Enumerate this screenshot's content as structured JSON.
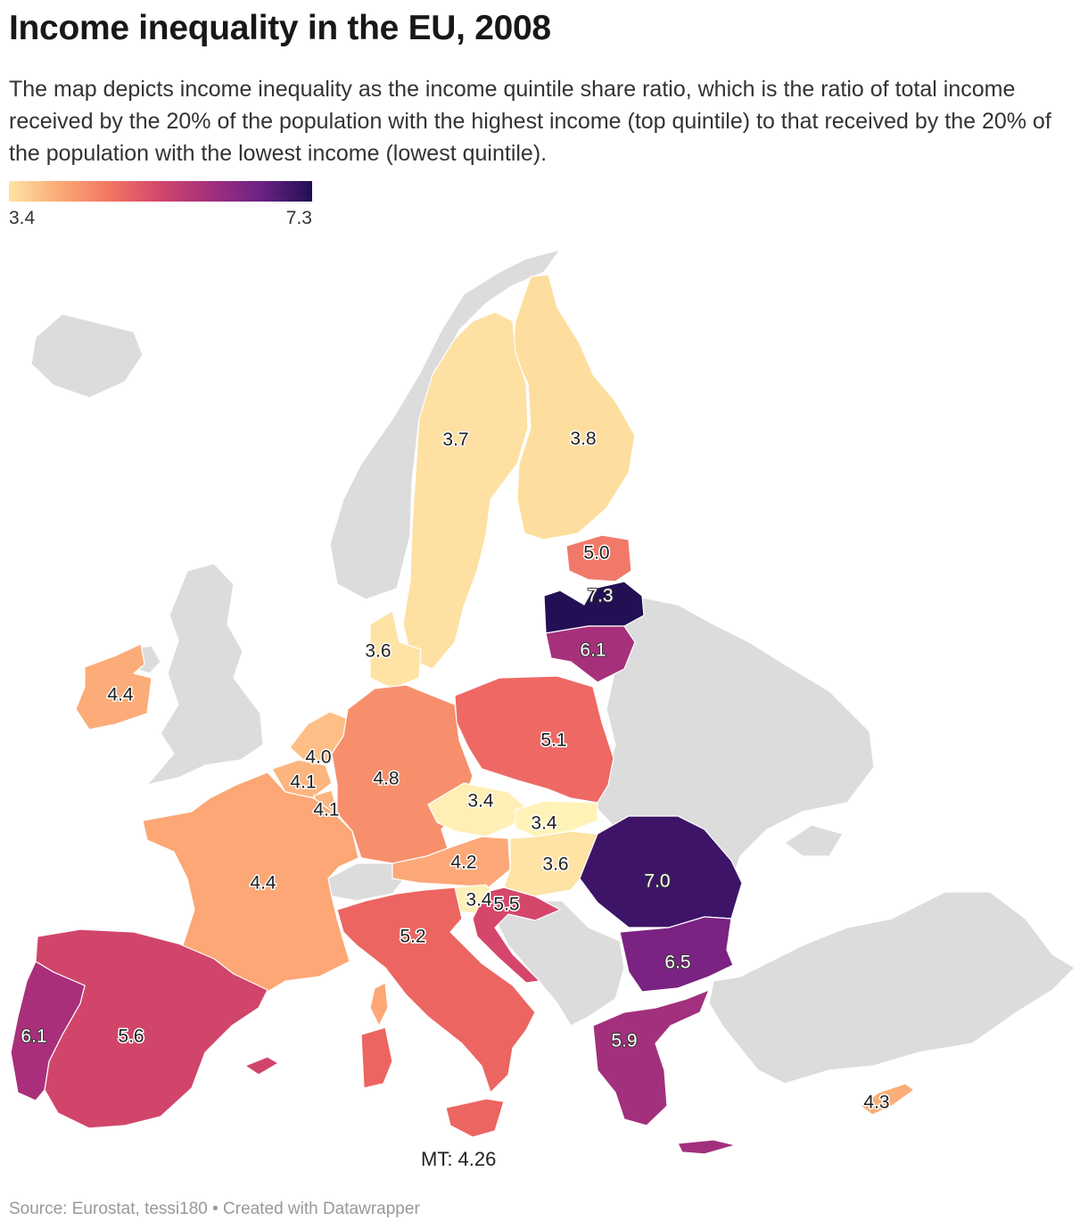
{
  "title": "Income inequality in the EU, 2008",
  "subtitle": "The map depicts income inequality as the income quintile share ratio, which is the ratio of total income received by the 20% of the population with the highest income (top quintile) to that received by the 20% of the population with the lowest income (lowest quintile).",
  "legend": {
    "min_label": "3.4",
    "max_label": "7.3",
    "min": 3.4,
    "max": 7.3
  },
  "colors": {
    "no_data": "#dcdcdc",
    "border": "#ffffff",
    "scale": [
      "#fee3a5",
      "#fcaa76",
      "#f27563",
      "#d2466c",
      "#a2307d",
      "#6b2185",
      "#210f53"
    ]
  },
  "map_data": {
    "regions": [
      {
        "name": "Finland",
        "value": "3.8"
      },
      {
        "name": "Sweden",
        "value": "3.7"
      },
      {
        "name": "Estonia",
        "value": "5.0"
      },
      {
        "name": "Latvia",
        "value": "7.3"
      },
      {
        "name": "Lithuania",
        "value": "6.1"
      },
      {
        "name": "Denmark",
        "value": "3.6"
      },
      {
        "name": "Ireland",
        "value": "4.4"
      },
      {
        "name": "Netherlands",
        "value": "4.0"
      },
      {
        "name": "Belgium",
        "value": "4.1"
      },
      {
        "name": "Luxembourg",
        "value": "4.1"
      },
      {
        "name": "Germany",
        "value": "4.8"
      },
      {
        "name": "Poland",
        "value": "5.1"
      },
      {
        "name": "Czechia",
        "value": "3.4"
      },
      {
        "name": "Slovakia",
        "value": "3.4"
      },
      {
        "name": "Austria",
        "value": "4.2"
      },
      {
        "name": "Hungary",
        "value": "3.6"
      },
      {
        "name": "Slovenia",
        "value": "3.4"
      },
      {
        "name": "Croatia",
        "value": "5.5"
      },
      {
        "name": "Romania",
        "value": "7.0"
      },
      {
        "name": "Bulgaria",
        "value": "6.5"
      },
      {
        "name": "Greece",
        "value": "5.9"
      },
      {
        "name": "France",
        "value": "4.4"
      },
      {
        "name": "Italy",
        "value": "5.2"
      },
      {
        "name": "Spain",
        "value": "5.6"
      },
      {
        "name": "Portugal",
        "value": "6.1"
      },
      {
        "name": "Cyprus",
        "value": "4.3"
      }
    ],
    "note": "MT: 4.26"
  },
  "footer": "Source: Eurostat, tessi180 • Created with Datawrapper"
}
